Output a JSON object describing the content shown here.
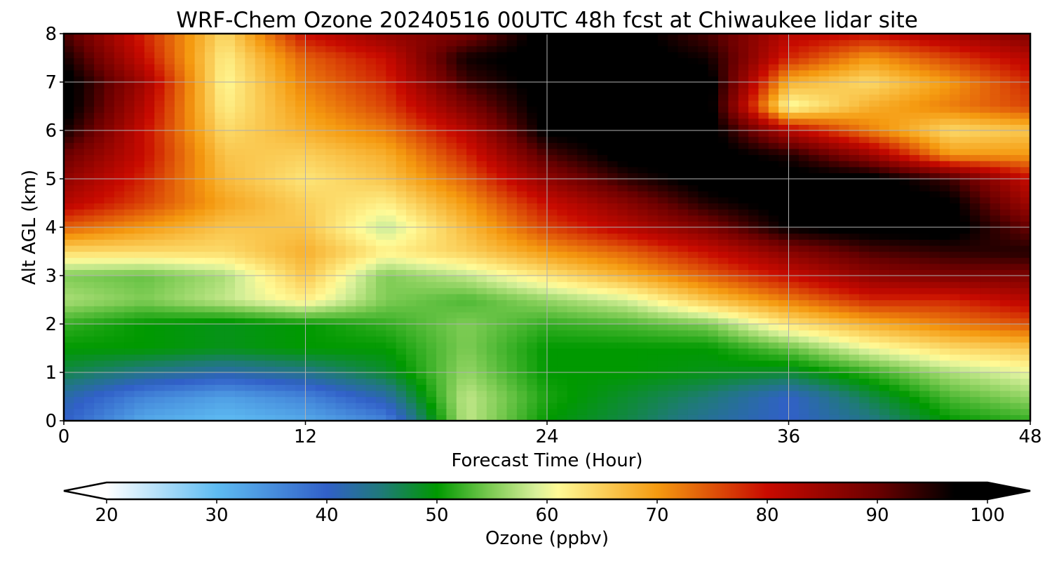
{
  "chart_data": {
    "type": "heatmap",
    "title": "WRF-Chem Ozone  20240516 00UTC 48h fcst at Chiwaukee lidar site",
    "xlabel": "Forecast Time (Hour)",
    "ylabel": "Alt AGL (km)",
    "xlim": [
      0,
      48
    ],
    "ylim": [
      0,
      8
    ],
    "x_ticks": [
      0,
      12,
      24,
      36,
      48
    ],
    "y_ticks": [
      0,
      1,
      2,
      3,
      4,
      5,
      6,
      7,
      8
    ],
    "grid": true,
    "colorbar": {
      "label": "Ozone  (ppbv)",
      "range": [
        20,
        100
      ],
      "ticks": [
        20,
        30,
        40,
        50,
        60,
        70,
        80,
        90,
        100
      ],
      "extend": "both",
      "orientation": "horizontal",
      "stops": [
        {
          "value": 20,
          "color": "#ffffff"
        },
        {
          "value": 30,
          "color": "#5ebcf2"
        },
        {
          "value": 40,
          "color": "#3160c8"
        },
        {
          "value": 45,
          "color": "#1f7a78"
        },
        {
          "value": 50,
          "color": "#009900"
        },
        {
          "value": 55,
          "color": "#7fcc55"
        },
        {
          "value": 59,
          "color": "#d8f09a"
        },
        {
          "value": 61,
          "color": "#fffa96"
        },
        {
          "value": 70,
          "color": "#f59a10"
        },
        {
          "value": 80,
          "color": "#c80a00"
        },
        {
          "value": 90,
          "color": "#6b0000"
        },
        {
          "value": 97,
          "color": "#000000"
        },
        {
          "value": 100,
          "color": "#000000"
        }
      ]
    },
    "time_hours": [
      0,
      4,
      8,
      12,
      16,
      20,
      24,
      28,
      32,
      36,
      40,
      44,
      48
    ],
    "altitudes_km": [
      0,
      0.5,
      1,
      1.5,
      2,
      2.5,
      3,
      3.5,
      4,
      4.5,
      5,
      5.5,
      6,
      6.5,
      7,
      7.5,
      8
    ],
    "ozone_ppbv": [
      [
        40,
        32,
        30,
        32,
        36,
        58,
        50,
        47,
        43,
        40,
        44,
        50,
        52
      ],
      [
        42,
        36,
        33,
        36,
        42,
        58,
        51,
        48,
        45,
        40,
        47,
        53,
        56
      ],
      [
        47,
        44,
        42,
        44,
        48,
        56,
        50,
        50,
        49,
        48,
        52,
        57,
        60
      ],
      [
        50,
        50,
        49,
        50,
        50,
        55,
        50,
        50,
        50,
        54,
        60,
        64,
        66
      ],
      [
        52,
        50,
        49,
        50,
        52,
        55,
        52,
        53,
        55,
        63,
        68,
        72,
        75
      ],
      [
        57,
        55,
        58,
        62,
        55,
        53,
        56,
        59,
        66,
        72,
        78,
        78,
        82
      ],
      [
        55,
        54,
        57,
        66,
        55,
        58,
        63,
        68,
        74,
        80,
        86,
        88,
        88
      ],
      [
        64,
        64,
        64,
        68,
        62,
        65,
        70,
        74,
        80,
        87,
        92,
        94,
        95
      ],
      [
        74,
        70,
        66,
        66,
        58,
        67,
        76,
        82,
        88,
        97,
        99,
        99,
        90
      ],
      [
        82,
        76,
        69,
        65,
        62,
        70,
        80,
        87,
        95,
        99,
        99,
        98,
        84
      ],
      [
        86,
        78,
        67,
        63,
        66,
        74,
        86,
        94,
        99,
        99,
        99,
        93,
        80
      ],
      [
        90,
        80,
        66,
        65,
        68,
        78,
        92,
        99,
        99,
        95,
        85,
        70,
        70
      ],
      [
        96,
        80,
        64,
        68,
        72,
        82,
        98,
        99,
        99,
        82,
        72,
        64,
        66
      ],
      [
        99,
        82,
        62,
        70,
        76,
        88,
        99,
        99,
        99,
        60,
        68,
        72,
        76
      ],
      [
        99,
        84,
        61,
        72,
        78,
        93,
        99,
        99,
        99,
        68,
        64,
        70,
        78
      ],
      [
        96,
        80,
        62,
        74,
        80,
        96,
        99,
        99,
        96,
        78,
        70,
        76,
        82
      ],
      [
        92,
        78,
        64,
        80,
        86,
        88,
        99,
        99,
        92,
        82,
        80,
        84,
        88
      ]
    ]
  }
}
